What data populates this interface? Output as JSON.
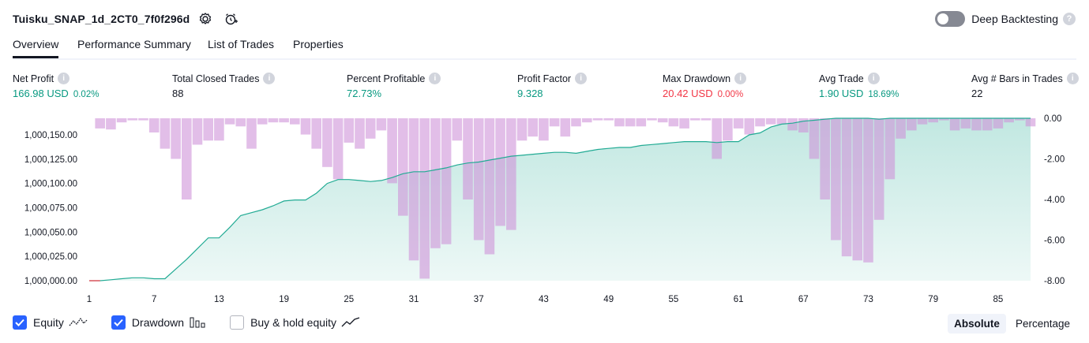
{
  "header": {
    "title": "Tuisku_SNAP_1d_2CT0_7f0f296d",
    "deep_backtesting_label": "Deep Backtesting"
  },
  "tabs": [
    "Overview",
    "Performance Summary",
    "List of Trades",
    "Properties"
  ],
  "metrics": [
    {
      "label": "Net Profit",
      "value": "166.98 USD",
      "pct": "0.02%",
      "color": "#089981"
    },
    {
      "label": "Total Closed Trades",
      "value": "88",
      "pct": "",
      "color": "#131722"
    },
    {
      "label": "Percent Profitable",
      "value": "72.73%",
      "pct": "",
      "color": "#089981"
    },
    {
      "label": "Profit Factor",
      "value": "9.328",
      "pct": "",
      "color": "#089981"
    },
    {
      "label": "Max Drawdown",
      "value": "20.42 USD",
      "pct": "0.00%",
      "color": "#f23645"
    },
    {
      "label": "Avg Trade",
      "value": "1.90 USD",
      "pct": "18.69%",
      "color": "#089981"
    },
    {
      "label": "Avg # Bars in Trades",
      "value": "22",
      "pct": "",
      "color": "#131722"
    }
  ],
  "legend": {
    "equity": "Equity",
    "drawdown": "Drawdown",
    "buyhold": "Buy & hold equity"
  },
  "modes": {
    "absolute": "Absolute",
    "percentage": "Percentage"
  },
  "chart_data": {
    "type": "area",
    "x": [
      1,
      2,
      3,
      4,
      5,
      6,
      7,
      8,
      9,
      10,
      11,
      12,
      13,
      14,
      15,
      16,
      17,
      18,
      19,
      20,
      21,
      22,
      23,
      24,
      25,
      26,
      27,
      28,
      29,
      30,
      31,
      32,
      33,
      34,
      35,
      36,
      37,
      38,
      39,
      40,
      41,
      42,
      43,
      44,
      45,
      46,
      47,
      48,
      49,
      50,
      51,
      52,
      53,
      54,
      55,
      56,
      57,
      58,
      59,
      60,
      61,
      62,
      63,
      64,
      65,
      66,
      67,
      68,
      69,
      70,
      71,
      72,
      73,
      74,
      75,
      76,
      77,
      78,
      79,
      80,
      81,
      82,
      83,
      84,
      85,
      86,
      87,
      88
    ],
    "x_tick_labels": [
      "1",
      "7",
      "13",
      "19",
      "25",
      "31",
      "37",
      "43",
      "49",
      "55",
      "61",
      "67",
      "73",
      "79",
      "85"
    ],
    "left_ticks": [
      "1,000,000.00",
      "1,000,025.00",
      "1,000,050.00",
      "1,000,075.00",
      "1,000,100.00",
      "1,000,125.00",
      "1,000,150.00"
    ],
    "right_ticks": [
      "0.00",
      "-2.00",
      "-4.00",
      "-6.00",
      "-8.00"
    ],
    "equity_ylim": [
      1000000,
      1000167
    ],
    "drawdown_ylim": [
      -8,
      0
    ],
    "series": [
      {
        "name": "Equity",
        "color": "#22ab94",
        "values": [
          1000000.0,
          1000000.0,
          1000001.0,
          1000002.0,
          1000003.0,
          1000003.0,
          1000002.0,
          1000002.0,
          1000012.0,
          1000022.0,
          1000033.0,
          1000044.0,
          1000044.0,
          1000055.0,
          1000067.0,
          1000070.0,
          1000073.0,
          1000077.0,
          1000082.0,
          1000083.0,
          1000083.0,
          1000090.0,
          1000100.0,
          1000104.0,
          1000104.0,
          1000103.0,
          1000102.0,
          1000103.0,
          1000106.0,
          1000110.0,
          1000112.0,
          1000112.0,
          1000114.0,
          1000116.0,
          1000119.0,
          1000121.0,
          1000122.0,
          1000124.0,
          1000126.0,
          1000128.0,
          1000129.0,
          1000130.0,
          1000131.0,
          1000132.0,
          1000132.0,
          1000131.0,
          1000133.0,
          1000135.0,
          1000136.0,
          1000137.0,
          1000137.0,
          1000139.0,
          1000140.0,
          1000141.0,
          1000142.0,
          1000143.0,
          1000143.0,
          1000143.0,
          1000142.0,
          1000143.0,
          1000143.0,
          1000150.0,
          1000152.0,
          1000158.0,
          1000161.0,
          1000162.0,
          1000164.0,
          1000165.0,
          1000166.0,
          1000167.0,
          1000167.0,
          1000167.0,
          1000167.0,
          1000166.0,
          1000167.0,
          1000167.0,
          1000167.0,
          1000167.0,
          1000167.0,
          1000167.0,
          1000167.0,
          1000167.0,
          1000167.0,
          1000167.0,
          1000167.0,
          1000167.0,
          1000167.0,
          1000167.0
        ]
      },
      {
        "name": "Drawdown",
        "color": "#ce93d8",
        "values": [
          0,
          -0.5,
          -0.55,
          -0.2,
          -0.1,
          -0.1,
          -0.7,
          -1.5,
          -2.0,
          -4.0,
          -1.3,
          -1.1,
          -1.1,
          -0.3,
          -0.4,
          -1.5,
          -0.3,
          -0.2,
          -0.2,
          -0.3,
          -0.8,
          -1.5,
          -2.4,
          -3.0,
          -1.2,
          -1.5,
          -1.0,
          -0.6,
          -3.2,
          -4.8,
          -7.0,
          -7.9,
          -6.4,
          -6.2,
          -1.1,
          -4.0,
          -6.0,
          -6.7,
          -5.3,
          -5.5,
          -1.1,
          -0.9,
          -1.1,
          -0.4,
          -0.9,
          -0.4,
          -0.2,
          -0.1,
          -0.1,
          -0.4,
          -0.4,
          -0.4,
          -0.1,
          -0.2,
          -0.4,
          -0.5,
          -0.1,
          -0.1,
          -2.0,
          -1.1,
          -0.5,
          -0.8,
          -0.4,
          -0.3,
          -0.3,
          -0.6,
          -0.7,
          -2.0,
          -4.0,
          -6.0,
          -6.8,
          -7.0,
          -7.1,
          -5.0,
          -3.0,
          -1.0,
          -0.6,
          -0.3,
          -0.2,
          -0.1,
          -0.6,
          -0.5,
          -0.6,
          -0.6,
          -0.5,
          -0.2,
          -0.1,
          -0.4
        ]
      }
    ]
  }
}
